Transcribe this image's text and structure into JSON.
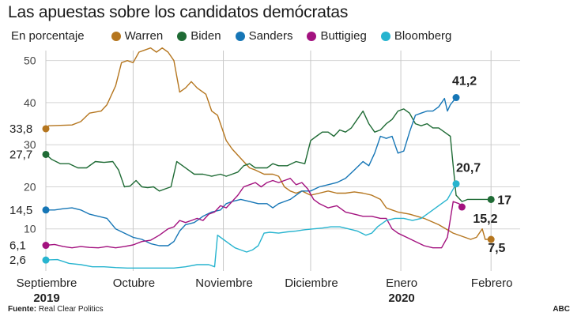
{
  "title": "Las apuestas sobre los candidatos demócratas",
  "unit_label": "En porcentaje",
  "source_label": "Fuente:",
  "source_text": "Real Clear Politics",
  "credit": "ABC",
  "legend": [
    {
      "name": "Warren",
      "color": "#b5761f"
    },
    {
      "name": "Biden",
      "color": "#1f6b35"
    },
    {
      "name": "Sanders",
      "color": "#1676b6"
    },
    {
      "name": "Buttigieg",
      "color": "#a3127f"
    },
    {
      "name": "Bloomberg",
      "color": "#27b4cf"
    }
  ],
  "chart_data": {
    "type": "line",
    "ylim": [
      0,
      52
    ],
    "yticks": [
      10,
      20,
      30,
      40,
      50
    ],
    "xlim": [
      0,
      163
    ],
    "grid": "vertical-and-horizontal",
    "months": [
      {
        "label": "Septiembre",
        "year": "2019",
        "x": 0
      },
      {
        "label": "Octubre",
        "year": "",
        "x": 30
      },
      {
        "label": "Noviembre",
        "year": "",
        "x": 61
      },
      {
        "label": "Diciembre",
        "year": "",
        "x": 91
      },
      {
        "label": "Enero",
        "year": "2020",
        "x": 122
      },
      {
        "label": "Febrero",
        "year": "",
        "x": 153
      }
    ],
    "series": [
      {
        "name": "Warren",
        "color": "#b5761f",
        "start_label": "33,8",
        "end_label": "7,5",
        "points": [
          [
            0,
            33.8
          ],
          [
            1,
            34.5
          ],
          [
            5,
            34.6
          ],
          [
            9,
            34.7
          ],
          [
            12,
            35.5
          ],
          [
            15,
            37.5
          ],
          [
            19,
            38.0
          ],
          [
            21,
            39.5
          ],
          [
            24,
            44
          ],
          [
            26,
            49.5
          ],
          [
            28,
            50
          ],
          [
            30,
            49.5
          ],
          [
            32,
            52
          ],
          [
            34,
            52.5
          ],
          [
            36,
            53
          ],
          [
            38,
            52
          ],
          [
            40,
            53
          ],
          [
            42,
            52
          ],
          [
            44,
            50
          ],
          [
            46,
            42.5
          ],
          [
            48,
            43.5
          ],
          [
            50,
            45
          ],
          [
            52,
            43.5
          ],
          [
            55,
            42
          ],
          [
            57,
            38
          ],
          [
            59,
            37
          ],
          [
            60,
            35
          ],
          [
            62,
            31
          ],
          [
            64,
            29
          ],
          [
            66,
            27.5
          ],
          [
            68,
            26
          ],
          [
            70,
            24.5
          ],
          [
            72,
            24
          ],
          [
            75,
            23
          ],
          [
            78,
            23
          ],
          [
            80,
            22.5
          ],
          [
            82,
            20
          ],
          [
            84,
            19
          ],
          [
            86,
            18.5
          ],
          [
            88,
            19
          ],
          [
            91,
            18
          ],
          [
            94,
            18.5
          ],
          [
            97,
            19
          ],
          [
            100,
            18.5
          ],
          [
            103,
            18.5
          ],
          [
            106,
            18.8
          ],
          [
            109,
            18.5
          ],
          [
            112,
            18
          ],
          [
            115,
            17
          ],
          [
            117,
            15
          ],
          [
            119,
            14.5
          ],
          [
            121,
            14
          ],
          [
            125,
            13.5
          ],
          [
            130,
            12.5
          ],
          [
            135,
            11
          ],
          [
            140,
            9
          ],
          [
            144,
            8
          ],
          [
            146,
            7.5
          ],
          [
            148,
            8
          ],
          [
            150,
            10
          ],
          [
            151,
            7.5
          ],
          [
            153,
            7.5
          ]
        ]
      },
      {
        "name": "Biden",
        "color": "#1f6b35",
        "start_label": "27,7",
        "end_label": "17",
        "points": [
          [
            0,
            27.7
          ],
          [
            2,
            26.5
          ],
          [
            5,
            25.5
          ],
          [
            8,
            25.5
          ],
          [
            11,
            24.5
          ],
          [
            14,
            24.5
          ],
          [
            17,
            26
          ],
          [
            20,
            25.8
          ],
          [
            23,
            26
          ],
          [
            25,
            24
          ],
          [
            27,
            20
          ],
          [
            29,
            20.2
          ],
          [
            31,
            21.5
          ],
          [
            33,
            20
          ],
          [
            35,
            19.8
          ],
          [
            37,
            20
          ],
          [
            39,
            19
          ],
          [
            41,
            19.5
          ],
          [
            43,
            20
          ],
          [
            45,
            26
          ],
          [
            47,
            25
          ],
          [
            49,
            24
          ],
          [
            51,
            23
          ],
          [
            54,
            23
          ],
          [
            57,
            22.5
          ],
          [
            60,
            23
          ],
          [
            62,
            22.5
          ],
          [
            64,
            23
          ],
          [
            66,
            23.5
          ],
          [
            68,
            25
          ],
          [
            70,
            25.5
          ],
          [
            72,
            24.5
          ],
          [
            74,
            24.5
          ],
          [
            76,
            24.5
          ],
          [
            78,
            25.5
          ],
          [
            80,
            25
          ],
          [
            83,
            25
          ],
          [
            86,
            26
          ],
          [
            89,
            25.5
          ],
          [
            91,
            31
          ],
          [
            93,
            32
          ],
          [
            95,
            33
          ],
          [
            97,
            33
          ],
          [
            99,
            32
          ],
          [
            101,
            33.5
          ],
          [
            103,
            33
          ],
          [
            105,
            34
          ],
          [
            107,
            36
          ],
          [
            109,
            38
          ],
          [
            111,
            35
          ],
          [
            113,
            33
          ],
          [
            115,
            33.5
          ],
          [
            117,
            35
          ],
          [
            119,
            36
          ],
          [
            121,
            38
          ],
          [
            123,
            38.5
          ],
          [
            125,
            37.5
          ],
          [
            127,
            35
          ],
          [
            129,
            34.5
          ],
          [
            131,
            35
          ],
          [
            133,
            34
          ],
          [
            135,
            34
          ],
          [
            137,
            33
          ],
          [
            139,
            32
          ],
          [
            140,
            25
          ],
          [
            141,
            18
          ],
          [
            143,
            16.5
          ],
          [
            145,
            17
          ],
          [
            153,
            17
          ]
        ]
      },
      {
        "name": "Sanders",
        "color": "#1676b6",
        "start_label": "14,5",
        "end_label": "41,2",
        "points": [
          [
            0,
            14.5
          ],
          [
            3,
            14.5
          ],
          [
            6,
            14.8
          ],
          [
            9,
            15
          ],
          [
            12,
            14.5
          ],
          [
            15,
            13.5
          ],
          [
            18,
            13
          ],
          [
            21,
            12.5
          ],
          [
            24,
            10
          ],
          [
            27,
            9
          ],
          [
            30,
            8
          ],
          [
            33,
            7.5
          ],
          [
            36,
            6.5
          ],
          [
            39,
            6
          ],
          [
            42,
            6
          ],
          [
            44,
            7
          ],
          [
            46,
            9.5
          ],
          [
            48,
            11
          ],
          [
            51,
            11.5
          ],
          [
            54,
            13
          ],
          [
            57,
            14
          ],
          [
            60,
            14.5
          ],
          [
            62,
            16
          ],
          [
            64,
            16.5
          ],
          [
            67,
            17
          ],
          [
            70,
            16.5
          ],
          [
            73,
            16
          ],
          [
            76,
            16
          ],
          [
            78,
            15
          ],
          [
            80,
            16
          ],
          [
            82,
            16.5
          ],
          [
            84,
            17
          ],
          [
            86,
            18
          ],
          [
            88,
            19
          ],
          [
            91,
            19
          ],
          [
            94,
            20
          ],
          [
            97,
            20.5
          ],
          [
            100,
            21
          ],
          [
            103,
            22
          ],
          [
            106,
            24
          ],
          [
            109,
            26
          ],
          [
            111,
            25
          ],
          [
            113,
            28
          ],
          [
            115,
            32
          ],
          [
            117,
            31.5
          ],
          [
            119,
            32
          ],
          [
            121,
            28
          ],
          [
            123,
            28.5
          ],
          [
            125,
            33
          ],
          [
            127,
            37
          ],
          [
            129,
            37.5
          ],
          [
            131,
            38
          ],
          [
            133,
            38
          ],
          [
            135,
            39
          ],
          [
            137,
            41
          ],
          [
            138,
            38
          ],
          [
            139,
            39.5
          ],
          [
            141,
            41.2
          ]
        ]
      },
      {
        "name": "Buttigieg",
        "color": "#a3127f",
        "start_label": "6,1",
        "end_label": "15,2",
        "points": [
          [
            0,
            6.1
          ],
          [
            3,
            6.3
          ],
          [
            6,
            5.8
          ],
          [
            9,
            5.5
          ],
          [
            12,
            5.8
          ],
          [
            15,
            5.6
          ],
          [
            18,
            5.5
          ],
          [
            21,
            5.8
          ],
          [
            24,
            5.5
          ],
          [
            27,
            5.8
          ],
          [
            30,
            6.2
          ],
          [
            33,
            7
          ],
          [
            36,
            7.3
          ],
          [
            39,
            8.5
          ],
          [
            42,
            10
          ],
          [
            44,
            10.5
          ],
          [
            46,
            12
          ],
          [
            48,
            11.5
          ],
          [
            50,
            12
          ],
          [
            52,
            12.5
          ],
          [
            54,
            12
          ],
          [
            56,
            13.5
          ],
          [
            58,
            14
          ],
          [
            60,
            15.5
          ],
          [
            62,
            15
          ],
          [
            64,
            16.5
          ],
          [
            66,
            18
          ],
          [
            68,
            20
          ],
          [
            70,
            20.5
          ],
          [
            72,
            21
          ],
          [
            74,
            20
          ],
          [
            76,
            21
          ],
          [
            78,
            21.5
          ],
          [
            80,
            21
          ],
          [
            82,
            21.5
          ],
          [
            84,
            22
          ],
          [
            86,
            20.5
          ],
          [
            88,
            21
          ],
          [
            90,
            19.5
          ],
          [
            92,
            17
          ],
          [
            94,
            16
          ],
          [
            97,
            15
          ],
          [
            100,
            15.5
          ],
          [
            103,
            14
          ],
          [
            106,
            13.5
          ],
          [
            109,
            13
          ],
          [
            112,
            13
          ],
          [
            115,
            12.5
          ],
          [
            117,
            12.5
          ],
          [
            119,
            10
          ],
          [
            121,
            9
          ],
          [
            124,
            8
          ],
          [
            127,
            7
          ],
          [
            130,
            6
          ],
          [
            133,
            5.5
          ],
          [
            136,
            5.5
          ],
          [
            138,
            8
          ],
          [
            140,
            16.5
          ],
          [
            142,
            16
          ],
          [
            143,
            15.2
          ]
        ]
      },
      {
        "name": "Bloomberg",
        "color": "#27b4cf",
        "start_label": "2,6",
        "end_label": "20,7",
        "points": [
          [
            0,
            2.6
          ],
          [
            4,
            2.7
          ],
          [
            8,
            1.8
          ],
          [
            12,
            1.5
          ],
          [
            16,
            1
          ],
          [
            20,
            1
          ],
          [
            24,
            0.8
          ],
          [
            28,
            0.7
          ],
          [
            32,
            0.7
          ],
          [
            36,
            0.7
          ],
          [
            40,
            0.7
          ],
          [
            44,
            0.7
          ],
          [
            48,
            1
          ],
          [
            52,
            1.5
          ],
          [
            56,
            1.5
          ],
          [
            58,
            1
          ],
          [
            59,
            8.5
          ],
          [
            61,
            7.5
          ],
          [
            63,
            6.5
          ],
          [
            65,
            5.5
          ],
          [
            67,
            5
          ],
          [
            69,
            4.5
          ],
          [
            71,
            5
          ],
          [
            73,
            6
          ],
          [
            75,
            9
          ],
          [
            77,
            9.2
          ],
          [
            80,
            9
          ],
          [
            83,
            9.3
          ],
          [
            86,
            9.5
          ],
          [
            89,
            9.8
          ],
          [
            92,
            10
          ],
          [
            95,
            10.2
          ],
          [
            98,
            10.5
          ],
          [
            101,
            10.5
          ],
          [
            104,
            10
          ],
          [
            107,
            9.5
          ],
          [
            110,
            8.5
          ],
          [
            112,
            9
          ],
          [
            114,
            10.5
          ],
          [
            117,
            12
          ],
          [
            120,
            12.5
          ],
          [
            123,
            12.5
          ],
          [
            126,
            12
          ],
          [
            129,
            12.5
          ],
          [
            132,
            14
          ],
          [
            135,
            15.5
          ],
          [
            138,
            17
          ],
          [
            141,
            20.7
          ]
        ]
      }
    ]
  }
}
